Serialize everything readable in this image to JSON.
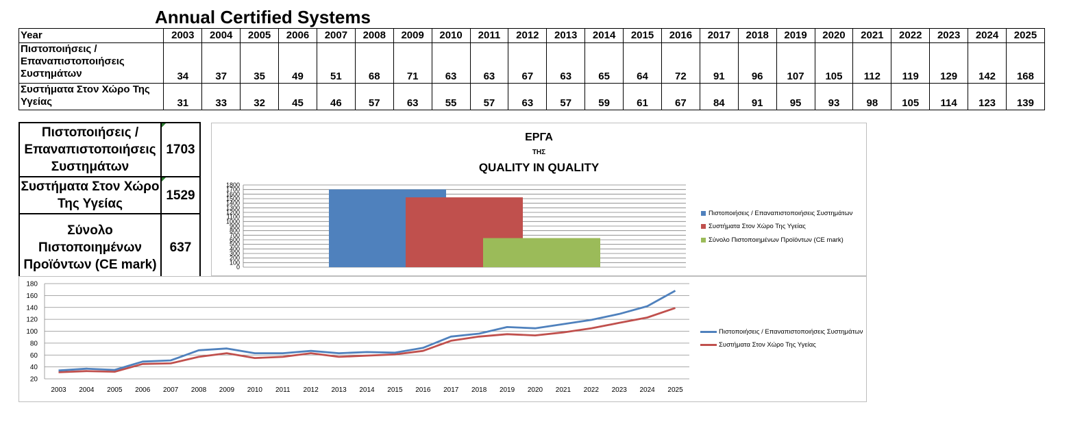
{
  "title": "Annual Certified Systems",
  "table": {
    "year_header": "Year",
    "years": [
      "2003",
      "2004",
      "2005",
      "2006",
      "2007",
      "2008",
      "2009",
      "2010",
      "2011",
      "2012",
      "2013",
      "2014",
      "2015",
      "2016",
      "2017",
      "2018",
      "2019",
      "2020",
      "2021",
      "2022",
      "2023",
      "2024",
      "2025"
    ],
    "rows": [
      {
        "label": "Πιστοποιήσεις / Επαναπιστοποιήσεις Συστημάτων",
        "values": [
          34,
          37,
          35,
          49,
          51,
          68,
          71,
          63,
          63,
          67,
          63,
          65,
          64,
          72,
          91,
          96,
          107,
          105,
          112,
          119,
          129,
          142,
          168
        ]
      },
      {
        "label": "Συστήματα Στον Χώρο Της Υγείας",
        "values": [
          31,
          33,
          32,
          45,
          46,
          57,
          63,
          55,
          57,
          63,
          57,
          59,
          61,
          67,
          84,
          91,
          95,
          93,
          98,
          105,
          114,
          123,
          139
        ]
      }
    ]
  },
  "summary": [
    {
      "label": "Πιστοποιήσεις / Επαναπιστοποιήσεις Συστημάτων",
      "value": "1703"
    },
    {
      "label": "Συστήματα Στον Χώρο Της Υγείας",
      "value": "1529"
    },
    {
      "label": "Σύνολο Πιστοποιημένων Προϊόντων (CE mark)",
      "value": "637"
    }
  ],
  "chart_data": [
    {
      "type": "bar",
      "title_line1": "ΕΡΓΑ",
      "title_line2": "ΤΗΣ",
      "title_line3": "QUALITY IN QUALITY",
      "ylim": [
        0,
        1800
      ],
      "yticks": [
        "0",
        "100",
        "200",
        "300",
        "400",
        "500",
        "600",
        "700",
        "800",
        "900",
        "1000",
        "1100",
        "1200",
        "1300",
        "1400",
        "1500",
        "1600",
        "1700",
        "1800"
      ],
      "series": [
        {
          "name": "Πιστοποιήσεις / Επαναπιστοποιήσεις Συστημάτων",
          "value": 1703,
          "color": "#4f81bd"
        },
        {
          "name": "Συστήματα Στον Χώρο Της Υγείας",
          "value": 1529,
          "color": "#c0504d"
        },
        {
          "name": "Σύνολο Πιστοποιημένων Προϊόντων (CE mark)",
          "value": 637,
          "color": "#9bbb59"
        }
      ],
      "legend_position": "right"
    },
    {
      "type": "line",
      "x": [
        "2003",
        "2004",
        "2005",
        "2006",
        "2007",
        "2008",
        "2009",
        "2010",
        "2011",
        "2012",
        "2013",
        "2014",
        "2015",
        "2016",
        "2017",
        "2018",
        "2019",
        "2020",
        "2021",
        "2022",
        "2023",
        "2024",
        "2025"
      ],
      "ylim": [
        20,
        180
      ],
      "yticks": [
        "20",
        "40",
        "60",
        "80",
        "100",
        "120",
        "140",
        "160",
        "180"
      ],
      "series": [
        {
          "name": "Πιστοποιήσεις / Επαναπιστοποιήσεις Συστημάτων",
          "values": [
            34,
            37,
            35,
            49,
            51,
            68,
            71,
            63,
            63,
            67,
            63,
            65,
            64,
            72,
            91,
            96,
            107,
            105,
            112,
            119,
            129,
            142,
            168
          ],
          "color": "#4f81bd"
        },
        {
          "name": "Συστήματα Στον Χώρο Της Υγείας",
          "values": [
            31,
            33,
            32,
            45,
            46,
            57,
            63,
            55,
            57,
            63,
            57,
            59,
            61,
            67,
            84,
            91,
            95,
            93,
            98,
            105,
            114,
            123,
            139
          ],
          "color": "#c0504d"
        }
      ],
      "legend_position": "right"
    }
  ]
}
